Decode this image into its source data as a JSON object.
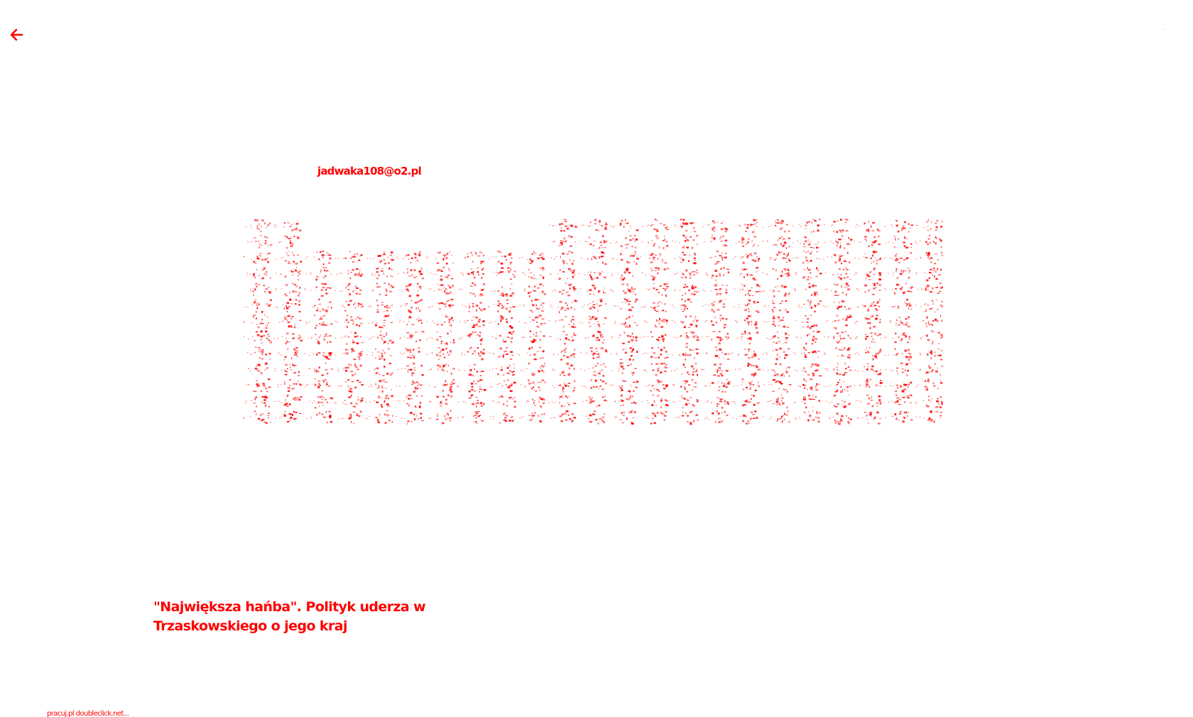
{
  "header": {
    "back_icon": "arrow-left-icon",
    "corner_mark": "·"
  },
  "account": {
    "email": "jadwaka108@o2.pl"
  },
  "article": {
    "headline": "\"Największa hańba\". Polityk uderza w Trzaskowskiego o jego kraj"
  },
  "footer": {
    "source": "pracuj.pl doubleclick.net..."
  },
  "colors": {
    "text": "#ff0000",
    "background": "#ffffff"
  }
}
